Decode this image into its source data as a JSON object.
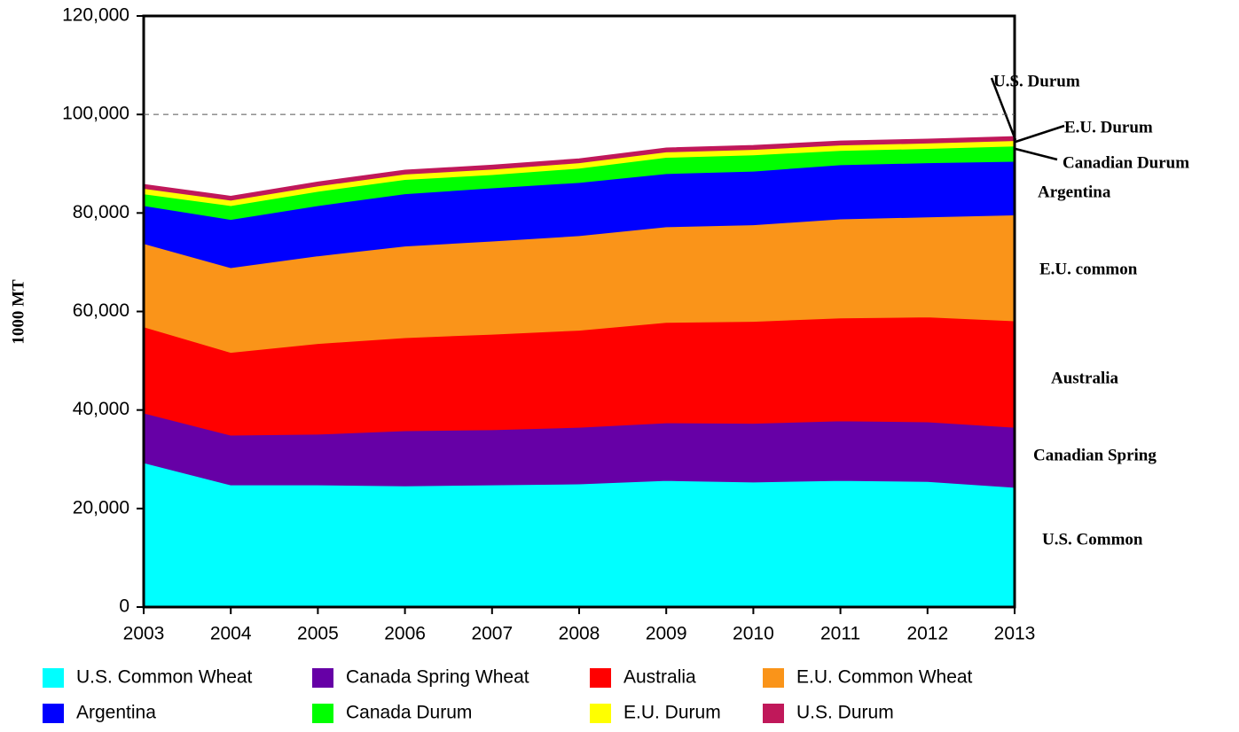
{
  "chart_data": {
    "type": "stacked_area",
    "y_label": "1000 MT",
    "x": [
      2003,
      2004,
      2005,
      2006,
      2007,
      2008,
      2009,
      2010,
      2011,
      2012,
      2013
    ],
    "xlim": [
      2003,
      2013
    ],
    "xticks": [
      2003,
      2004,
      2005,
      2006,
      2007,
      2008,
      2009,
      2010,
      2011,
      2012,
      2013
    ],
    "ylim": [
      0,
      120000
    ],
    "yticks": [
      0,
      {
        "value": 20000,
        "label": "20,000"
      },
      {
        "value": 40000,
        "label": "40,000"
      },
      {
        "value": 60000,
        "label": "60,000"
      },
      {
        "value": 80000,
        "label": "80,000"
      },
      {
        "value": 100000,
        "label": "100,000"
      },
      {
        "value": 120000,
        "label": "120,000"
      }
    ],
    "reference_line": 100000,
    "series": [
      {
        "name": "U.S. Common Wheat",
        "color": "#00ffff",
        "values": [
          29300,
          24800,
          24800,
          24600,
          24800,
          25000,
          25700,
          25400,
          25700,
          25500,
          24300
        ]
      },
      {
        "name": "Canada Spring Wheat",
        "color": "#6600a6",
        "values": [
          10100,
          10100,
          10300,
          11200,
          11200,
          11500,
          11700,
          11900,
          12100,
          12100,
          12200
        ]
      },
      {
        "name": "Australia",
        "color": "#ff0000",
        "values": [
          17500,
          16800,
          18400,
          18900,
          19400,
          19700,
          20400,
          20700,
          20900,
          21300,
          21600
        ]
      },
      {
        "name": "E.U. Common Wheat",
        "color": "#fa9419",
        "values": [
          16900,
          17200,
          17800,
          18600,
          18900,
          19200,
          19400,
          19600,
          20100,
          20300,
          21500
        ]
      },
      {
        "name": "Argentina",
        "color": "#0000ff",
        "values": [
          7700,
          9800,
          10200,
          10600,
          10800,
          10800,
          10800,
          10900,
          11000,
          11000,
          10900
        ]
      },
      {
        "name": "Canada Durum",
        "color": "#00ff00",
        "values": [
          2400,
          2800,
          2900,
          2900,
          2700,
          2900,
          3300,
          3300,
          2900,
          2900,
          3100
        ]
      },
      {
        "name": "E.U. Durum",
        "color": "#ffff00",
        "values": [
          1100,
          1100,
          1100,
          1100,
          1100,
          1100,
          1100,
          1100,
          1100,
          1100,
          1100
        ]
      },
      {
        "name": "U.S. Durum",
        "color": "#c0185a",
        "values": [
          800,
          800,
          800,
          800,
          800,
          800,
          800,
          800,
          800,
          800,
          800
        ]
      }
    ],
    "annotations": [
      "U.S. Durum",
      "E.U. Durum",
      "Canadian Durum",
      "Argentina",
      "E.U. common",
      "Australia",
      "Canadian Spring",
      "U.S. Common"
    ]
  }
}
